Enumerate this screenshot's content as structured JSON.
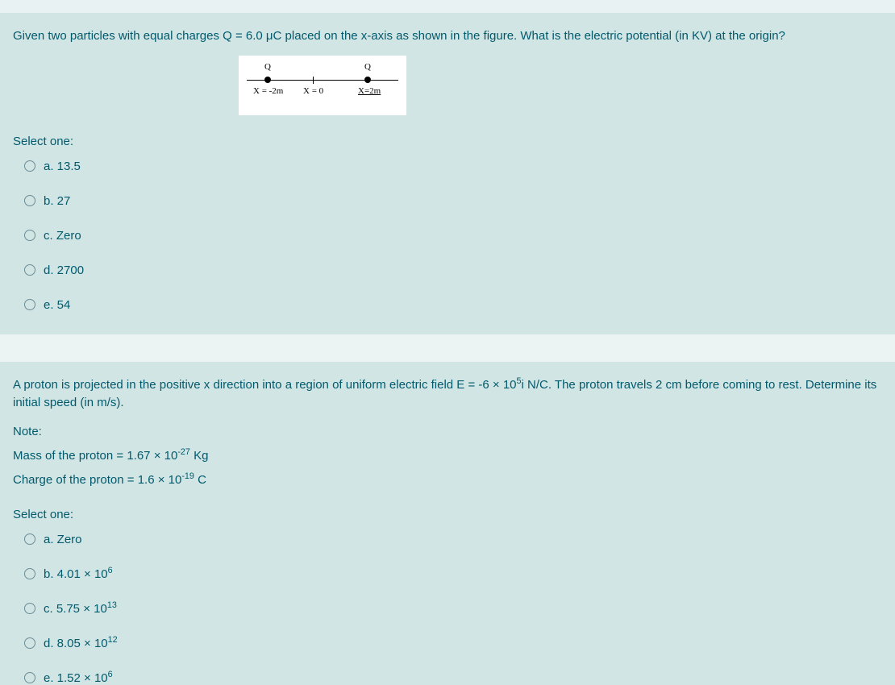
{
  "q1": {
    "prompt": "Given two particles with equal charges Q = 6.0 μC placed on the x-axis as shown in the figure. What is the electric potential (in KV) at the origin?",
    "figure": {
      "charge_label_left": "Q",
      "charge_label_right": "Q",
      "pos_left": "X = -2m",
      "pos_mid": "X = 0",
      "pos_right": "X=2m",
      "background": "#ffffff"
    },
    "select_label": "Select one:",
    "options": [
      {
        "key": "a",
        "text": "a. 13.5"
      },
      {
        "key": "b",
        "text": "b. 27"
      },
      {
        "key": "c",
        "text": "c. Zero"
      },
      {
        "key": "d",
        "text": "d. 2700"
      },
      {
        "key": "e",
        "text": "e. 54"
      }
    ]
  },
  "q2": {
    "prompt_html": "A proton is projected in the positive x direction into a region of uniform electric field E = -6 × 10<sup>5</sup>i N/C. The proton travels 2 cm before coming to rest. Determine its initial speed (in m/s).",
    "note_label": "Note:",
    "mass_line_html": "Mass of the proton = 1.67 × 10<sup>-27</sup> Kg",
    "charge_line_html": "Charge of the proton = 1.6 × 10<sup>-19</sup> C",
    "select_label": "Select one:",
    "options": [
      {
        "key": "a",
        "text_html": "a. Zero"
      },
      {
        "key": "b",
        "text_html": "b. 4.01 × 10<sup>6</sup>"
      },
      {
        "key": "c",
        "text_html": "c. 5.75 × 10<sup>13</sup>"
      },
      {
        "key": "d",
        "text_html": "d. 8.05 × 10<sup>12</sup>"
      },
      {
        "key": "e",
        "text_html": "e. 1.52 × 10<sup>6</sup>"
      }
    ]
  },
  "colors": {
    "page_bg": "#d2e5e5",
    "text": "#005a6c",
    "gap_bg": "#e9f2f2",
    "radio_border": "#6a8d94"
  }
}
